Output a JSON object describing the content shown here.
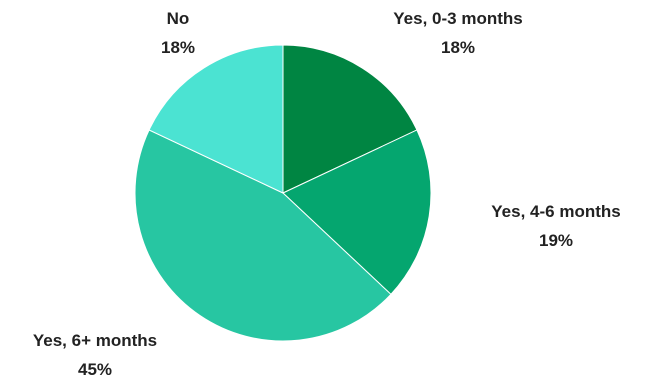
{
  "chart_data": {
    "type": "pie",
    "title": "",
    "slices": [
      {
        "label": "Yes, 0-3 months",
        "value": 18,
        "value_label": "18%",
        "color": "#008542"
      },
      {
        "label": "Yes, 4-6 months",
        "value": 19,
        "value_label": "19%",
        "color": "#05A66F"
      },
      {
        "label": "Yes, 6+ months",
        "value": 45,
        "value_label": "45%",
        "color": "#27C6A2"
      },
      {
        "label": "No",
        "value": 18,
        "value_label": "18%",
        "color": "#4BE3D2"
      }
    ],
    "start_angle_deg": 0,
    "direction": "clockwise",
    "legend": "none",
    "data_labels": "outside"
  }
}
